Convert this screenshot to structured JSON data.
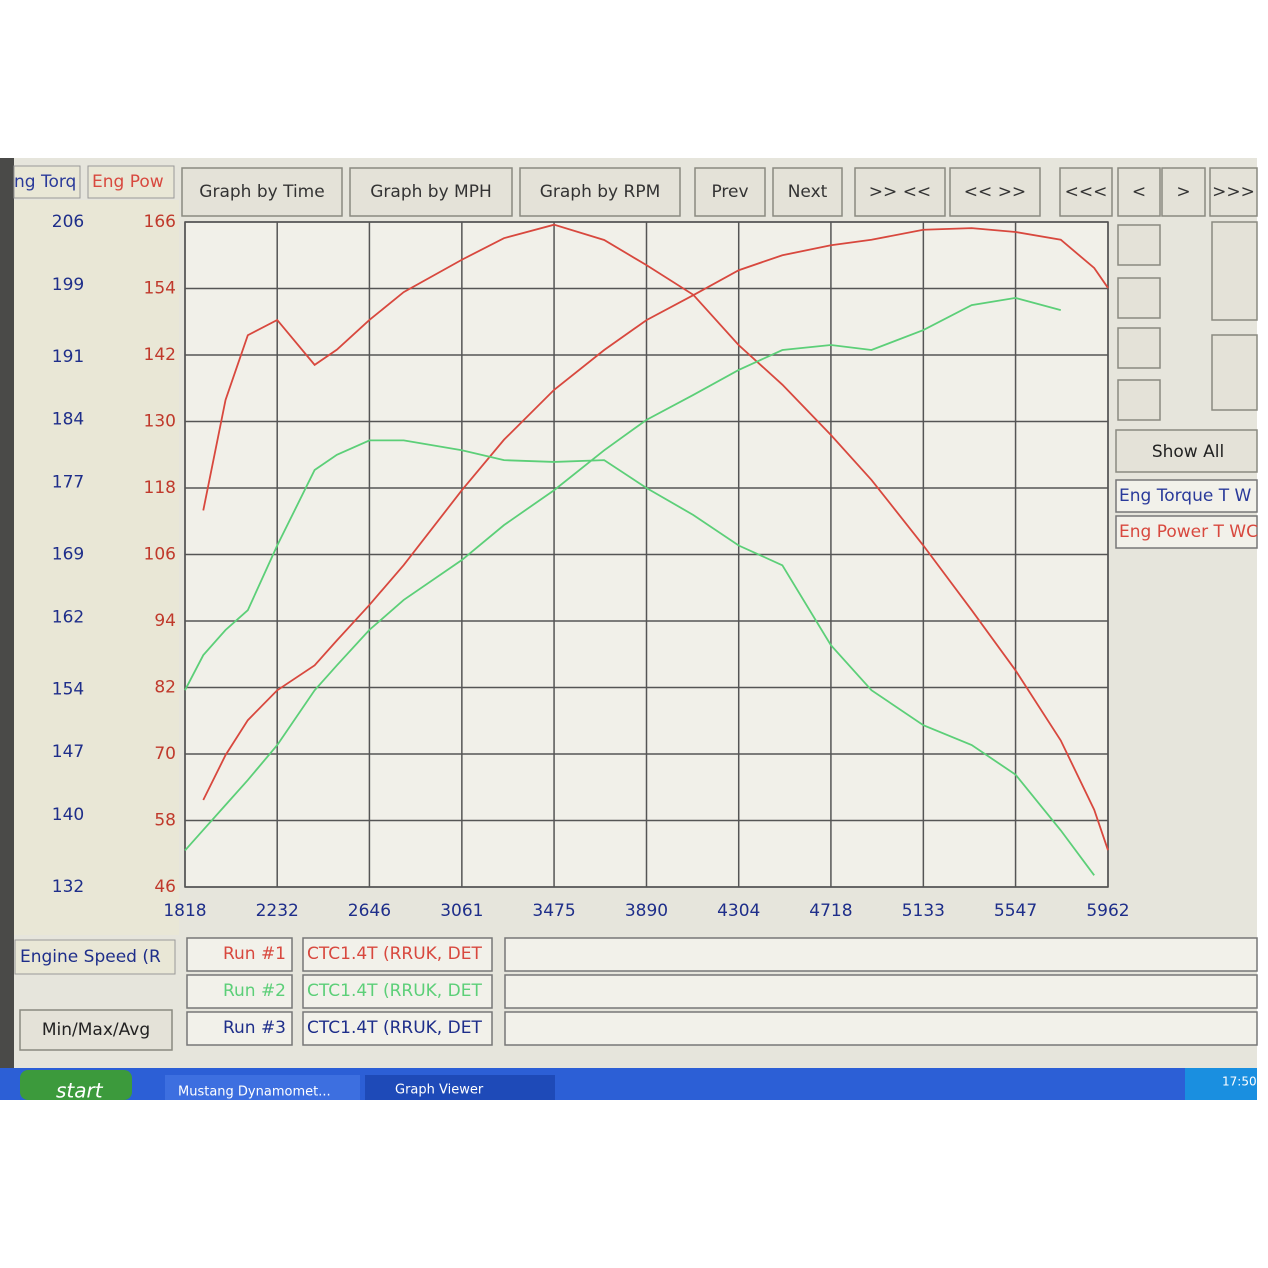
{
  "toolbar": {
    "buttons": [
      "Graph by Time",
      "Graph by MPH",
      "Graph by RPM",
      "Prev",
      "Next",
      ">> <<",
      "<< >>",
      "<<<",
      "<",
      ">",
      ">>>"
    ]
  },
  "axis_headers": [
    "ng Torq",
    "Eng Pow"
  ],
  "chart_data": {
    "type": "line",
    "x": [
      1818,
      1900,
      2000,
      2100,
      2232,
      2400,
      2500,
      2646,
      2800,
      3061,
      3250,
      3475,
      3700,
      3890,
      4100,
      4304,
      4500,
      4718,
      4900,
      5133,
      5350,
      5547,
      5750,
      5900,
      5962
    ],
    "xlim": [
      1818,
      5962
    ],
    "xticks": [
      1818,
      2232,
      2646,
      3061,
      3475,
      3890,
      4304,
      4718,
      5133,
      5547,
      5962
    ],
    "ylim": [
      132,
      206
    ],
    "yticks": [
      206,
      199,
      191,
      184,
      177,
      169,
      162,
      154,
      147,
      140,
      132
    ],
    "y2lim": [
      46,
      166
    ],
    "y2ticks": [
      166,
      154,
      142,
      130,
      118,
      106,
      94,
      82,
      70,
      58,
      46
    ],
    "grid": true,
    "series": [
      {
        "color": "#d8483e",
        "values": [
          null,
          173.9,
          186.2,
          193.4,
          195.1,
          190.1,
          191.8,
          195.1,
          198.2,
          201.8,
          204.2,
          205.7,
          204.0,
          201.2,
          197.9,
          192.3,
          187.9,
          182.3,
          177.3,
          170.0,
          162.8,
          156.1,
          148.3,
          140.6,
          136.1
        ]
      },
      {
        "color": "#d8483e",
        "axis": "y2",
        "values": [
          null,
          61.7,
          69.8,
          76.1,
          81.5,
          86.0,
          90.5,
          96.9,
          104.1,
          117.6,
          126.7,
          135.7,
          142.9,
          148.3,
          152.8,
          157.3,
          160.0,
          161.8,
          162.8,
          164.6,
          164.9,
          164.2,
          162.8,
          157.7,
          154.1
        ]
      },
      {
        "color": "#5ccf78",
        "values": [
          153.9,
          157.8,
          160.6,
          162.8,
          170.0,
          178.4,
          180.1,
          181.7,
          181.7,
          180.6,
          179.5,
          179.3,
          179.5,
          176.4,
          173.4,
          170.0,
          167.8,
          158.9,
          153.9,
          150.0,
          147.8,
          144.5,
          138.3,
          133.3,
          null
        ]
      },
      {
        "color": "#5ccf78",
        "axis": "y2",
        "values": [
          52.6,
          56.3,
          60.8,
          65.3,
          71.6,
          81.5,
          86.0,
          92.4,
          97.8,
          105.0,
          111.3,
          117.6,
          124.8,
          130.3,
          134.8,
          139.3,
          142.9,
          143.8,
          142.9,
          146.5,
          151.0,
          152.3,
          150.1,
          null,
          null
        ]
      }
    ]
  },
  "side_panel": {
    "show_all": "Show All",
    "legend": [
      {
        "label": "Eng Torque T W",
        "color": "#2a3a9a"
      },
      {
        "label": "Eng Power T WC",
        "color": "#d8483e"
      }
    ]
  },
  "x_axis_name": "Engine Speed (R",
  "min_max_avg": "Min/Max/Avg",
  "runs": [
    {
      "label": "Run #1",
      "name": "CTC1.4T (RRUK, DET",
      "color": "#d8483e"
    },
    {
      "label": "Run #2",
      "name": "CTC1.4T (RRUK, DET",
      "color": "#5ccf78"
    },
    {
      "label": "Run #3",
      "name": "CTC1.4T (RRUK, DET",
      "color": "#1e2e8a"
    }
  ],
  "taskbar": {
    "start": "start",
    "tasks": [
      "Mustang Dynamomet...",
      "Graph Viewer"
    ],
    "clock": "17:50"
  }
}
